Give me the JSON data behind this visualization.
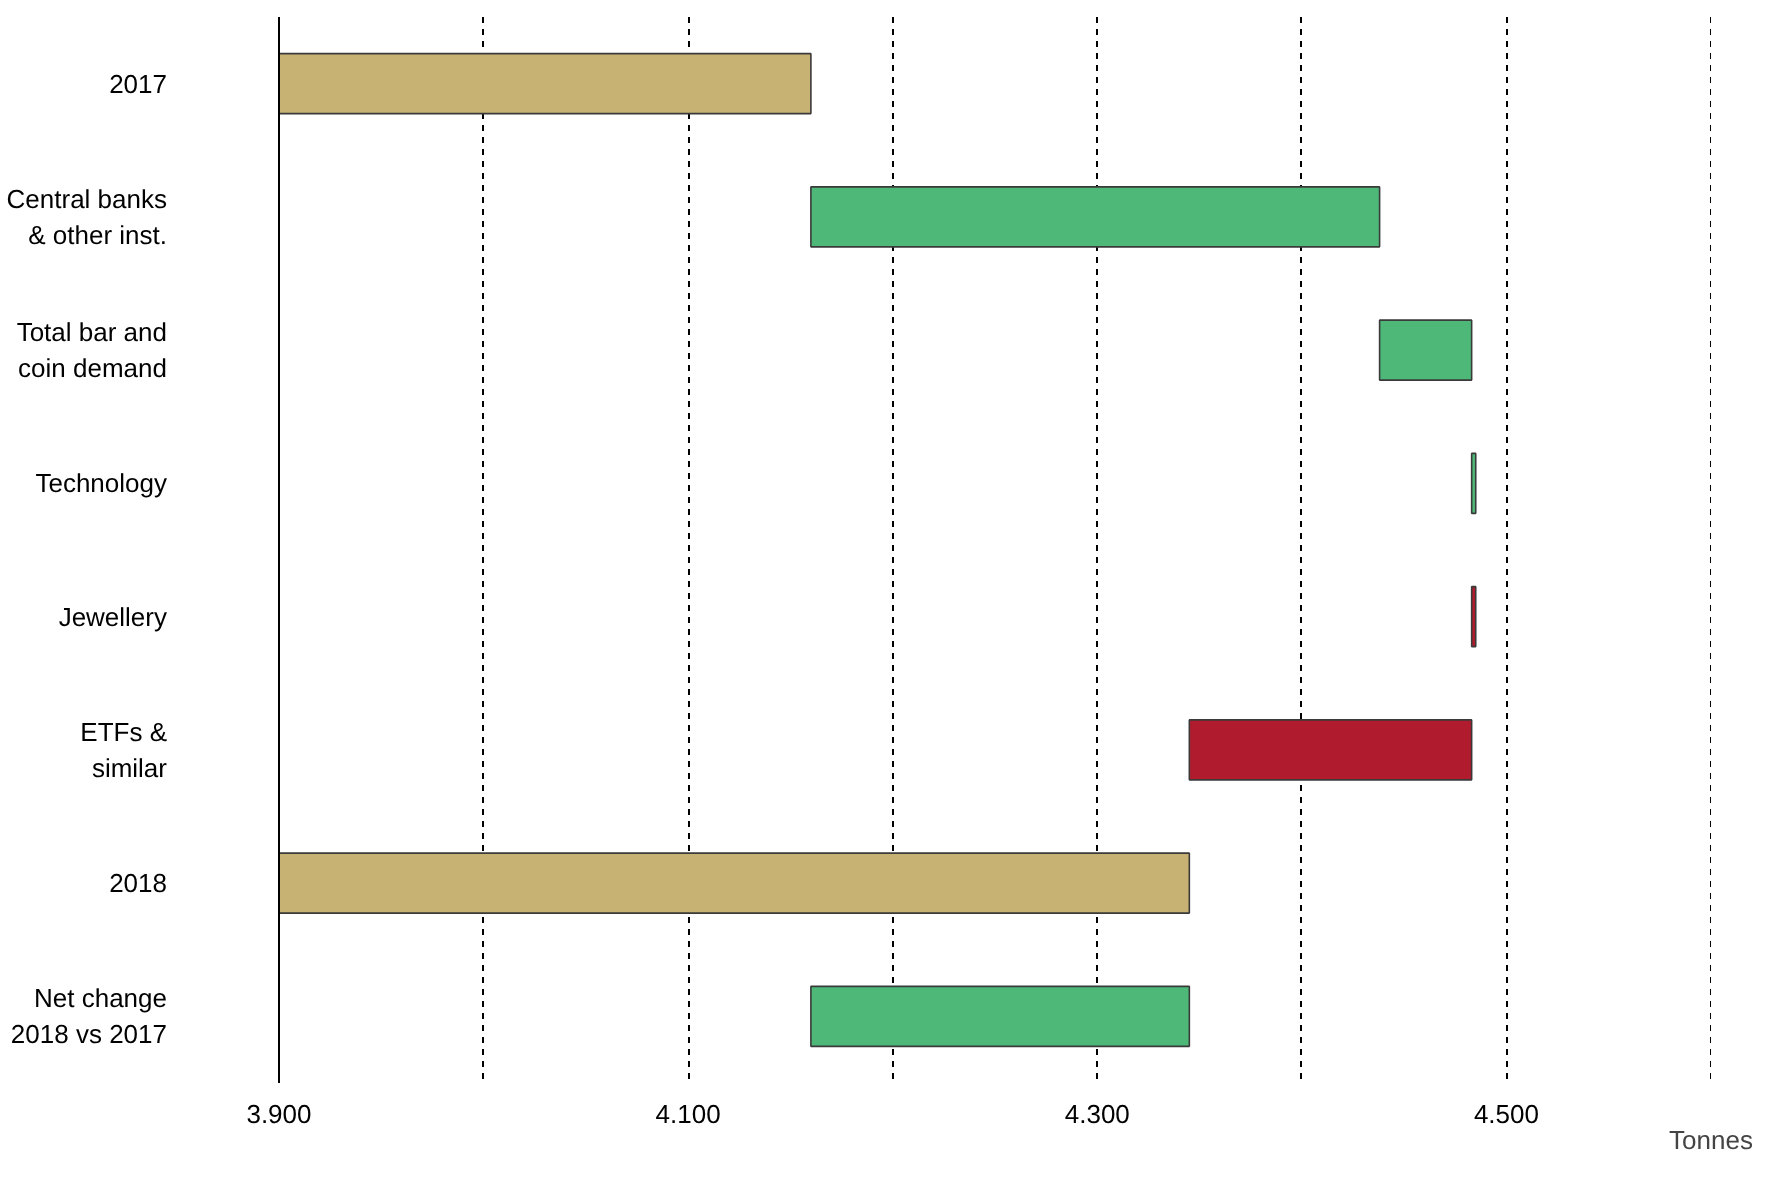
{
  "chart_data": {
    "type": "bar",
    "orientation": "horizontal",
    "xlabel": "Tonnes",
    "categories": [
      "2017",
      "Central banks\n& other inst.",
      "Total bar and\ncoin demand",
      "Technology",
      "Jewellery",
      "ETFs &\nsimilar",
      "2018",
      "Net change\n2018 vs 2017"
    ],
    "values": [
      4160,
      278,
      45,
      2,
      -2,
      -138,
      4345,
      185
    ],
    "base": [
      null,
      4160,
      4438,
      4483,
      4485,
      4483,
      null,
      4160
    ],
    "colors": [
      "#c8b273",
      "#4db878",
      "#4db878",
      "#4db878",
      "#b01c2e",
      "#b01c2e",
      "#c8b273",
      "#4db878"
    ],
    "xlim": [
      3900,
      4600
    ],
    "xticks": [
      {
        "value": 3900,
        "label": "3.900"
      },
      {
        "value": 4000,
        "label": null
      },
      {
        "value": 4100,
        "label": "4.100"
      },
      {
        "value": 4200,
        "label": null
      },
      {
        "value": 4300,
        "label": "4.300"
      },
      {
        "value": 4400,
        "label": null
      },
      {
        "value": 4500,
        "label": "4.500"
      },
      {
        "value": 4600,
        "label": null
      }
    ],
    "grid": "x"
  }
}
